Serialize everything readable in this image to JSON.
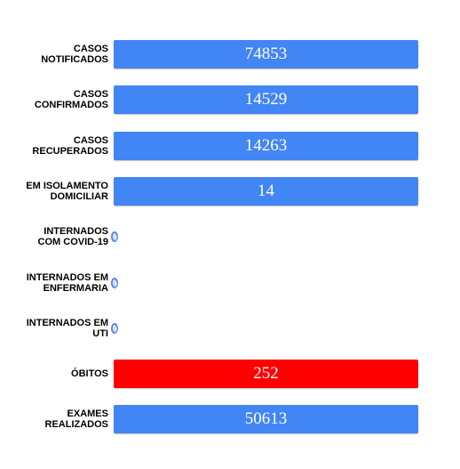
{
  "chart_data": {
    "type": "bar",
    "orientation": "horizontal",
    "categories": [
      [
        "CASOS",
        "NOTIFICADOS"
      ],
      [
        "CASOS",
        "CONFIRMADOS"
      ],
      [
        "CASOS",
        "RECUPERADOS"
      ],
      [
        "EM ISOLAMENTO",
        "DOMICILIAR"
      ],
      [
        "INTERNADOS",
        "COM COVID-19"
      ],
      [
        "INTERNADOS EM",
        "ENFERMARIA"
      ],
      [
        "INTERNADOS EM",
        "UTI"
      ],
      [
        "ÓBITOS"
      ],
      [
        "EXAMES",
        "REALIZADOS"
      ]
    ],
    "values": [
      74853,
      14529,
      14263,
      14,
      0,
      0,
      0,
      252,
      50613
    ],
    "value_labels": [
      "74853",
      "14529",
      "14263",
      "14",
      "",
      "",
      "",
      "252",
      "50613"
    ],
    "bar_colors": [
      "#4285f4",
      "#4285f4",
      "#4285f4",
      "#4285f4",
      "#4285f4",
      "#4285f4",
      "#4285f4",
      "#ff0000",
      "#4285f4"
    ],
    "zero_marker_color": "#4a86e8",
    "value_label_color": "#ffffff",
    "title": "",
    "xlabel": "",
    "ylabel": "",
    "grid": false,
    "legend": "none"
  }
}
